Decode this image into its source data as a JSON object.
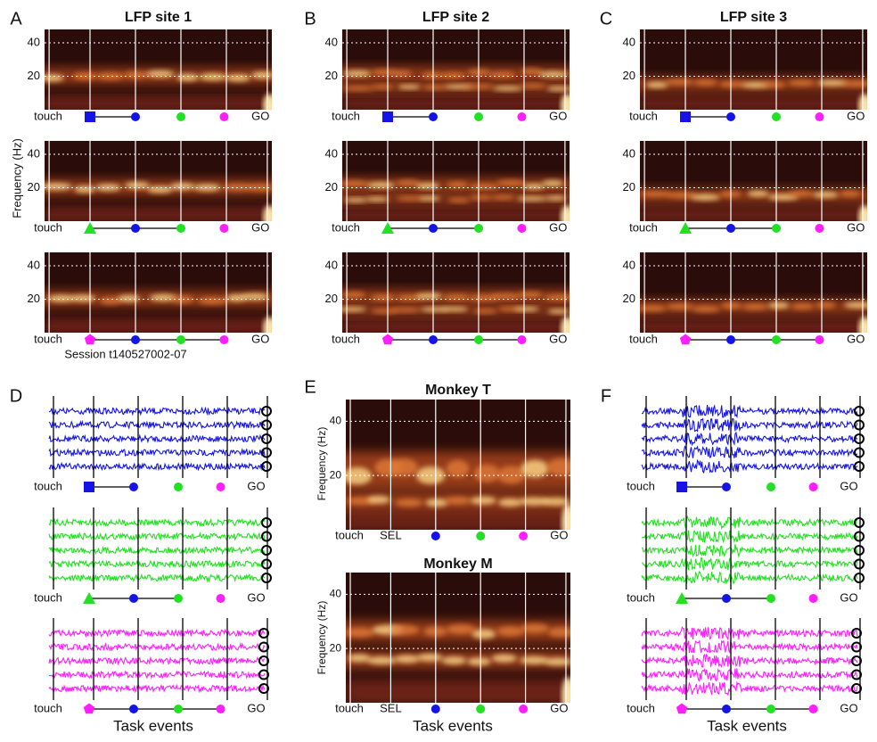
{
  "frequency_label": "Frequency (Hz)",
  "task_events_label": "Task events",
  "event_labels": {
    "touch": "touch",
    "go": "GO",
    "sel": "SEL"
  },
  "ylim": [
    0,
    48
  ],
  "yticks": [
    20,
    40
  ],
  "event_colors": {
    "blue": "#1414e6",
    "green": "#22e022",
    "magenta": "#ff1eff"
  },
  "spectro_panels": [
    {
      "letter": "A",
      "title": "LFP site 1"
    },
    {
      "letter": "B",
      "title": "LFP site 2"
    },
    {
      "letter": "C",
      "title": "LFP site 3"
    }
  ],
  "session": "Session t140527002-07",
  "trace_panels": [
    {
      "letter": "D"
    },
    {
      "letter": "F"
    }
  ],
  "monkey_panel": {
    "letter": "E",
    "titles": [
      "Monkey T",
      "Monkey M"
    ]
  }
}
